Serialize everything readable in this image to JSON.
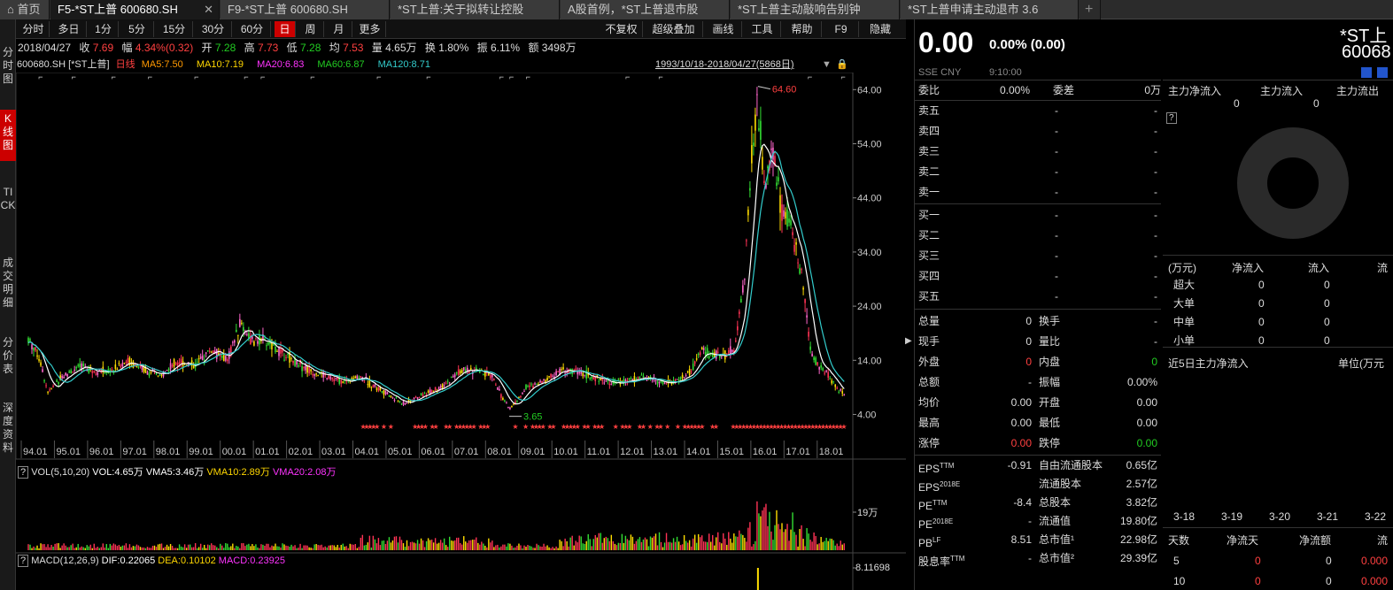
{
  "tabs": [
    {
      "label": "首页",
      "icon": "home-icon"
    },
    {
      "label": "F5-*ST上普 600680.SH"
    },
    {
      "label": "F9-*ST上普 600680.SH"
    },
    {
      "label": "*ST上普:关于拟转让控股"
    },
    {
      "label": "A股首例，*ST上普退市股"
    },
    {
      "label": "*ST上普主动敲响告别钟"
    },
    {
      "label": "*ST上普申请主动退市 3.6"
    }
  ],
  "sidebar": [
    "分时图",
    "K线图",
    "TICK",
    "成交明细",
    "分价表",
    "深度资料"
  ],
  "toolbar": {
    "periods": [
      "分时",
      "多日",
      "1分",
      "5分",
      "15分",
      "30分",
      "60分",
      "日",
      "周",
      "月",
      "更多"
    ],
    "right": [
      "不复权",
      "超级叠加",
      "画线",
      "工具",
      "帮助",
      "F9",
      "隐藏"
    ]
  },
  "quote": {
    "date": "2018/04/27",
    "close_label": "收",
    "close": "7.69",
    "change_label": "幅",
    "change": "4.34%(0.32)",
    "open_label": "开",
    "open": "7.28",
    "high_label": "高",
    "high": "7.73",
    "low_label": "低",
    "low": "7.28",
    "avg_label": "均",
    "avg": "7.53",
    "vol_label": "量",
    "vol": "4.65万",
    "turnover_label": "换",
    "turnover": "1.80%",
    "amp_label": "振",
    "amp": "6.11%",
    "amount_label": "额",
    "amount": "3498万"
  },
  "ma": {
    "code": "600680.SH [*ST上普]",
    "type": "日线",
    "ma5": "MA5:7.50",
    "ma10": "MA10:7.19",
    "ma20": "MA20:6.83",
    "ma60": "MA60:6.87",
    "ma120": "MA120:8.71",
    "range": "1993/10/18-2018/04/27(5868日)"
  },
  "chart_data": {
    "type": "candlestick",
    "y_ticks": [
      "64.00",
      "54.00",
      "44.00",
      "34.00",
      "24.00",
      "14.00",
      "4.00"
    ],
    "x_ticks": [
      "94.01",
      "95.01",
      "96.01",
      "97.01",
      "98.01",
      "99.01",
      "00.01",
      "01.01",
      "02.01",
      "03.01",
      "04.01",
      "05.01",
      "06.01",
      "07.01",
      "08.01",
      "09.01",
      "10.01",
      "11.01",
      "12.01",
      "13.01",
      "14.01",
      "15.01",
      "16.01",
      "17.01",
      "18.01"
    ],
    "max_label": "64.60",
    "min_label": "3.65",
    "price_curve": [
      [
        0,
        18
      ],
      [
        0.3,
        15
      ],
      [
        0.6,
        8
      ],
      [
        1,
        11
      ],
      [
        1.3,
        12
      ],
      [
        1.7,
        13
      ],
      [
        2,
        12
      ],
      [
        2.5,
        12
      ],
      [
        3,
        14
      ],
      [
        3.3,
        13
      ],
      [
        3.6,
        12
      ],
      [
        4,
        11
      ],
      [
        4.5,
        14
      ],
      [
        5,
        13
      ],
      [
        5.5,
        16
      ],
      [
        6,
        14
      ],
      [
        6.4,
        21
      ],
      [
        6.8,
        17
      ],
      [
        7,
        18
      ],
      [
        7.5,
        16
      ],
      [
        8,
        14
      ],
      [
        8.5,
        12
      ],
      [
        9,
        11
      ],
      [
        9.5,
        10
      ],
      [
        10,
        11
      ],
      [
        10.5,
        9
      ],
      [
        11,
        7
      ],
      [
        11.3,
        6
      ],
      [
        11.7,
        7
      ],
      [
        12,
        8
      ],
      [
        12.5,
        9
      ],
      [
        13,
        12
      ],
      [
        13.5,
        12
      ],
      [
        14,
        11
      ],
      [
        14.3,
        7
      ],
      [
        14.5,
        5
      ],
      [
        14.8,
        7
      ],
      [
        15,
        9
      ],
      [
        15.5,
        10
      ],
      [
        16,
        12
      ],
      [
        16.5,
        12
      ],
      [
        17,
        11
      ],
      [
        17.5,
        10
      ],
      [
        18,
        10
      ],
      [
        18.5,
        11
      ],
      [
        19,
        10
      ],
      [
        19.5,
        10
      ],
      [
        20,
        12
      ],
      [
        20.3,
        16
      ],
      [
        20.6,
        15
      ],
      [
        21,
        15
      ],
      [
        21.3,
        16
      ],
      [
        21.6,
        30
      ],
      [
        21.8,
        50
      ],
      [
        22,
        62
      ],
      [
        22.2,
        45
      ],
      [
        22.4,
        55
      ],
      [
        22.7,
        42
      ],
      [
        23,
        38
      ],
      [
        23.3,
        30
      ],
      [
        23.6,
        15
      ],
      [
        24,
        12
      ],
      [
        24.4,
        9
      ],
      [
        24.6,
        7.7
      ]
    ],
    "volume": {
      "label": "VOL(5,10,20)",
      "vol": "VOL:4.65万",
      "vma5": "VMA5:3.46万",
      "vma10": "VMA10:2.89万",
      "vma20": "VMA20:2.08万",
      "tick": "19万"
    },
    "macd": {
      "label": "MACD(12,26,9)",
      "dif": "DIF:0.22065",
      "dea": "DEA:0.10102",
      "macd": "MACD:0.23925",
      "tick": "8.11698"
    }
  },
  "right": {
    "price": "0.00",
    "change": "0.00% (0.00)",
    "name": "*ST上",
    "code": "60068",
    "market": "SSE  CNY",
    "time": "9:10:00",
    "weibi_label": "委比",
    "weibi": "0.00%",
    "weicha_label": "委差",
    "weicha": "0万",
    "asks": [
      "卖五",
      "卖四",
      "卖三",
      "卖二",
      "卖一"
    ],
    "bids": [
      "买一",
      "买二",
      "买三",
      "买四",
      "买五"
    ],
    "dash": "-",
    "stats": [
      [
        "总量",
        "0",
        "换手",
        "-"
      ],
      [
        "现手",
        "0",
        "量比",
        "-"
      ],
      [
        "外盘",
        "0",
        "内盘",
        "0"
      ],
      [
        "总额",
        "-",
        "振幅",
        "0.00%"
      ],
      [
        "均价",
        "0.00",
        "开盘",
        "0.00"
      ],
      [
        "最高",
        "0.00",
        "最低",
        "0.00"
      ],
      [
        "涨停",
        "0.00",
        "跌停",
        "0.00"
      ]
    ],
    "fin": [
      [
        "EPS",
        "TTM",
        "-0.91",
        "自由流通股本",
        "0.65亿"
      ],
      [
        "EPS",
        "2018E",
        "",
        "流通股本",
        "2.57亿"
      ],
      [
        "PE",
        "TTM",
        "-8.4",
        "总股本",
        "3.82亿"
      ],
      [
        "PE",
        "2018E",
        "-",
        "流通值",
        "19.80亿"
      ],
      [
        "PB",
        "LF",
        "8.51",
        "总市值¹",
        "22.98亿"
      ],
      [
        "股息率",
        "TTM",
        "-",
        "总市值²",
        "29.39亿"
      ]
    ],
    "flow_header": [
      "主力净流入",
      "主力流入",
      "主力流出"
    ],
    "flow_values": [
      "0",
      "0"
    ],
    "flow_table_header": [
      "(万元)",
      "净流入",
      "流入",
      "流"
    ],
    "flow_rows": [
      [
        "超大",
        "0",
        "0"
      ],
      [
        "大单",
        "0",
        "0"
      ],
      [
        "中单",
        "0",
        "0"
      ],
      [
        "小单",
        "0",
        "0"
      ]
    ],
    "five_day_title": "近5日主力净流入",
    "unit": "单位(万元",
    "dates": [
      "3-18",
      "3-19",
      "3-20",
      "3-21",
      "3-22"
    ],
    "days_header": [
      "天数",
      "净流天",
      "净流额",
      "流"
    ],
    "days_rows": [
      [
        "5",
        "0",
        "0",
        "0.000"
      ],
      [
        "10",
        "0",
        "0",
        "0.000"
      ]
    ]
  }
}
